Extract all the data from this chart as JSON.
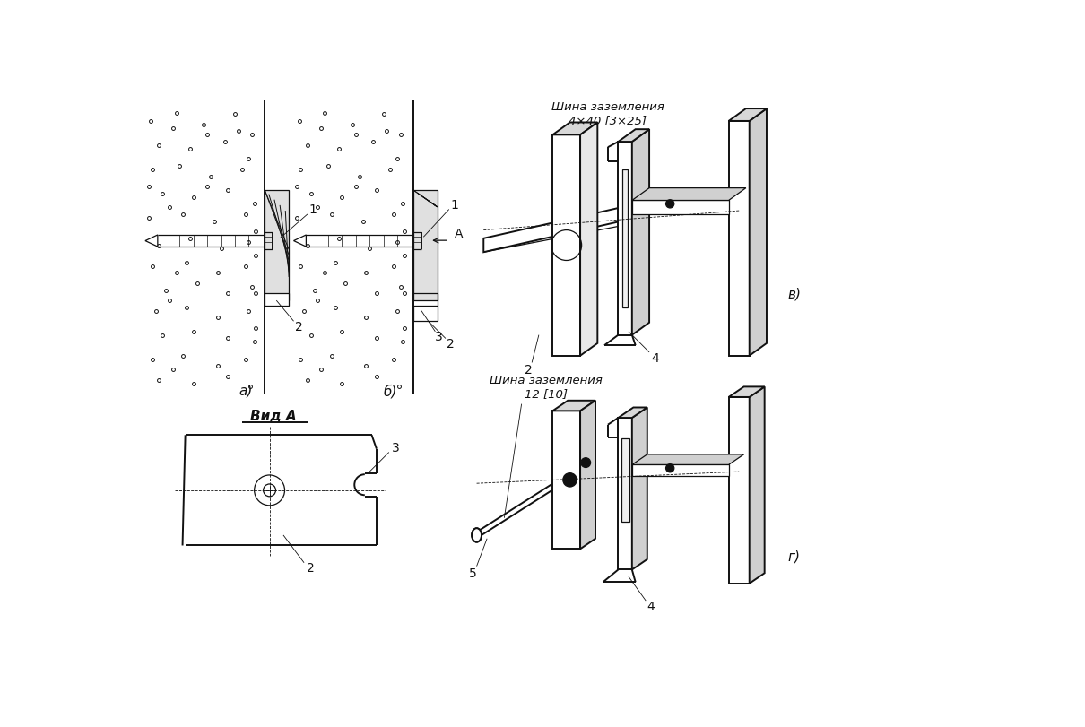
{
  "bg_color": "#ffffff",
  "line_color": "#111111",
  "label_a": "а)",
  "label_b": "б)",
  "label_v": "в)",
  "label_g": "г)",
  "label_vid_A": "Вид A",
  "label_shina1": "Шина заземления\n4×40 [3×25]",
  "label_shina2": "Шина заземления\n12 [10]",
  "label_A": "A",
  "num1": "1",
  "num2": "2",
  "num3": "3",
  "num4": "4",
  "num5": "5"
}
